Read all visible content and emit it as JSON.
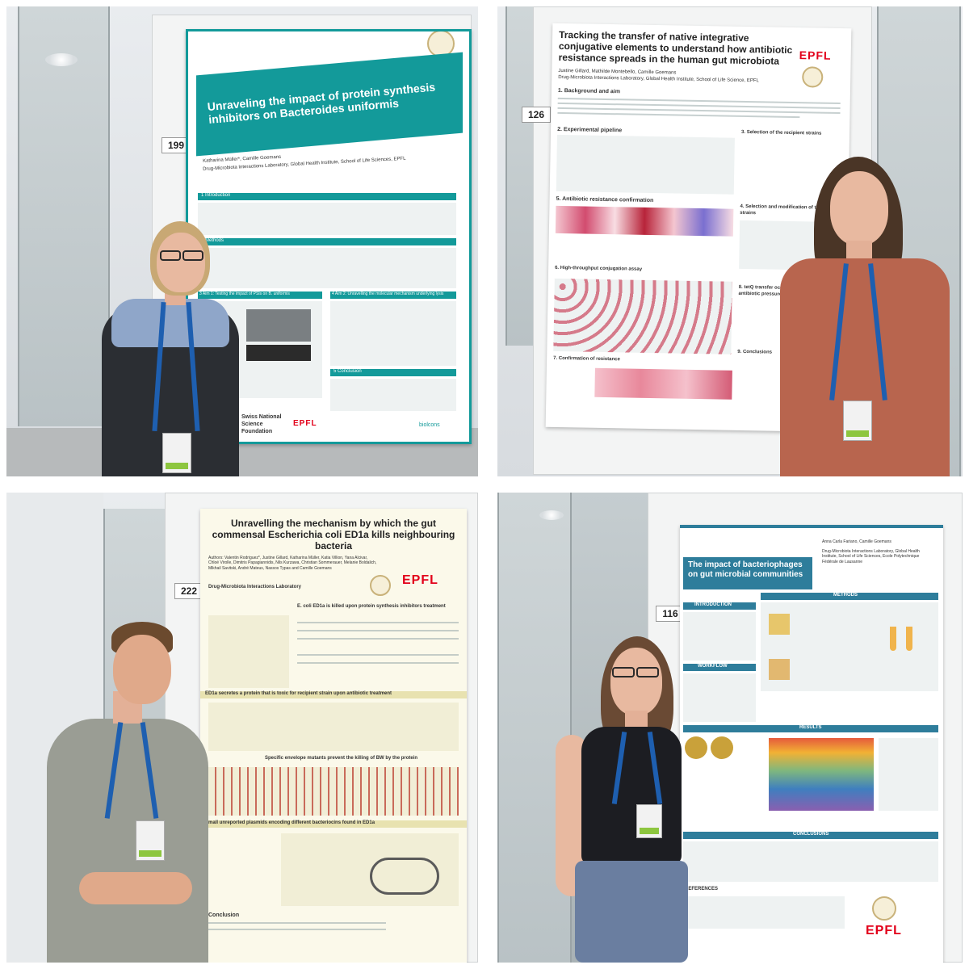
{
  "colors": {
    "epfl_red": "#e2001a",
    "teal": "#139a9a",
    "poster2_accent": "#b8243a",
    "poster3_accent": "#6b5c1e",
    "poster4_blue": "#2e7d9b",
    "lanyard_blue": "#1e5fb0"
  },
  "posters": [
    {
      "number": "199",
      "logo": "EPFL",
      "title": "Unraveling the impact of protein synthesis inhibitors on Bacteroides uniformis",
      "authors": "Katharina Müller*, Camille Goemans",
      "affiliation": "Drug-Microbiota Interactions Laboratory, Global Health Institute, School of Life Sciences, EPFL",
      "sections": [
        "1 Introduction",
        "2 Methods",
        "3 Aim 1: Testing the impact of PSIs on B. uniformis",
        "4 Aim 2: Unravelling the molecular mechanism underlying lysis",
        "5 Conclusion"
      ],
      "sponsor": "Swiss National Science Foundation",
      "footer_logo": "biolcons"
    },
    {
      "number": "126",
      "logo": "EPFL",
      "title": "Tracking the transfer of native integrative conjugative elements to understand how antibiotic resistance spreads in the human gut microbiota",
      "authors": "Justine Gillard, Mathilde Montebello, Camille Goemans",
      "affiliation": "Drug-Microbiota Interactions Laboratory, Global Health Institute, School of Life Science, EPFL",
      "sections": [
        "1. Background and aim",
        "2. Experimental pipeline",
        "3. Selection of the recipient strains",
        "4. Selection and modification of the donor strains",
        "5. Antibiotic resistance confirmation",
        "6. High-throughput conjugation assay",
        "7. Confirmation of resistance",
        "8. tetQ transfer occurs in absence of antibiotic pressure",
        "9. Conclusions"
      ]
    },
    {
      "number": "222",
      "logo": "EPFL",
      "title": "Unravelling the mechanism by which the gut commensal Escherichia coli ED1a kills neighbouring bacteria",
      "authors": "Authors: Valentin Rodriguez*, Justine Gillard, Katharina Müller, Katia Villion, Yana Alcivar, Chloé Virolle, Dimitris Papagiannidis, Nils Kurzawa, Christian Sommerauer, Melanie Boldalich, Mikhail Savitski, André Mateus, Nassos Typas and Camille Goemans",
      "affiliation": "Drug-Microbiota Interactions Laboratory",
      "sections": [
        "E. coli ED1a is killed upon protein synthesis inhibitors treatment",
        "ED1a secretes a protein that is toxic for recipient strain upon antibiotic treatment",
        "Specific envelope mutants prevent the killing of BW by the protein",
        "Small unreported plasmids encoding different bacteriocins found in ED1a",
        "Conclusion"
      ]
    },
    {
      "number": "116",
      "logo": "EPFL",
      "title": "The impact of bacteriophages on gut microbial communities",
      "authors": "Anna Carla Fariano, Camille Goemans",
      "affiliation": "Drug-Microbiota Interactions Laboratory, Global Health Institute, School of Life Sciences, Ecole Polytechnique Fédérale de Lausanne",
      "sections": [
        "INTRODUCTION",
        "METHODS",
        "WORKFLOW",
        "RESULTS",
        "CONCLUSIONS",
        "REFERENCES"
      ]
    }
  ]
}
